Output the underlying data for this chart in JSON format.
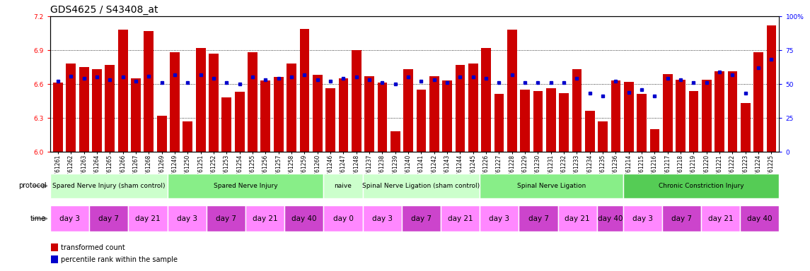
{
  "title": "GDS4625 / S43408_at",
  "ylim": [
    6.0,
    7.2
  ],
  "yticks": [
    6.0,
    6.3,
    6.6,
    6.9,
    7.2
  ],
  "y2lim": [
    0,
    100
  ],
  "y2ticks": [
    0,
    25,
    50,
    75,
    100
  ],
  "samples": [
    "GSM761261",
    "GSM761262",
    "GSM761263",
    "GSM761264",
    "GSM761265",
    "GSM761266",
    "GSM761267",
    "GSM761268",
    "GSM761269",
    "GSM761249",
    "GSM761250",
    "GSM761251",
    "GSM761252",
    "GSM761253",
    "GSM761254",
    "GSM761255",
    "GSM761256",
    "GSM761257",
    "GSM761258",
    "GSM761259",
    "GSM761260",
    "GSM761246",
    "GSM761247",
    "GSM761248",
    "GSM761237",
    "GSM761238",
    "GSM761239",
    "GSM761240",
    "GSM761241",
    "GSM761242",
    "GSM761243",
    "GSM761244",
    "GSM761245",
    "GSM761226",
    "GSM761227",
    "GSM761228",
    "GSM761229",
    "GSM761230",
    "GSM761231",
    "GSM761232",
    "GSM761233",
    "GSM761234",
    "GSM761235",
    "GSM761236",
    "GSM761214",
    "GSM761215",
    "GSM761216",
    "GSM761217",
    "GSM761218",
    "GSM761219",
    "GSM761220",
    "GSM761221",
    "GSM761222",
    "GSM761223",
    "GSM761224",
    "GSM761225"
  ],
  "bar_values": [
    6.61,
    6.78,
    6.75,
    6.73,
    6.77,
    7.08,
    6.65,
    7.07,
    6.32,
    6.88,
    6.27,
    6.92,
    6.87,
    6.48,
    6.53,
    6.88,
    6.63,
    6.66,
    6.78,
    7.09,
    6.68,
    6.56,
    6.65,
    6.9,
    6.67,
    6.61,
    6.18,
    6.73,
    6.55,
    6.67,
    6.63,
    6.77,
    6.78,
    6.92,
    6.51,
    7.08,
    6.55,
    6.54,
    6.56,
    6.52,
    6.73,
    6.36,
    6.27,
    6.63,
    6.62,
    6.51,
    6.2,
    6.69,
    6.64,
    6.54,
    6.64,
    6.71,
    6.71,
    6.43,
    6.88,
    7.12
  ],
  "percentile_values": [
    52,
    56,
    54,
    55,
    53,
    55,
    52,
    56,
    51,
    57,
    51,
    57,
    54,
    51,
    50,
    55,
    53,
    54,
    55,
    57,
    53,
    52,
    54,
    55,
    53,
    51,
    50,
    55,
    52,
    53,
    51,
    55,
    55,
    54,
    51,
    57,
    51,
    51,
    51,
    51,
    54,
    43,
    41,
    52,
    44,
    46,
    41,
    54,
    53,
    51,
    51,
    59,
    57,
    43,
    62,
    68
  ],
  "protocol_groups": [
    {
      "label": "Spared Nerve Injury (sham control)",
      "start": 0,
      "end": 9,
      "color": "#ccffcc"
    },
    {
      "label": "Spared Nerve Injury",
      "start": 9,
      "end": 21,
      "color": "#88ee88"
    },
    {
      "label": "naive",
      "start": 21,
      "end": 24,
      "color": "#ccffcc"
    },
    {
      "label": "Spinal Nerve Ligation (sham control)",
      "start": 24,
      "end": 33,
      "color": "#ccffcc"
    },
    {
      "label": "Spinal Nerve Ligation",
      "start": 33,
      "end": 44,
      "color": "#88ee88"
    },
    {
      "label": "Chronic Constriction Injury",
      "start": 44,
      "end": 56,
      "color": "#55cc55"
    }
  ],
  "time_groups": [
    {
      "label": "day 3",
      "start": 0,
      "end": 3,
      "color": "#ff88ff"
    },
    {
      "label": "day 7",
      "start": 3,
      "end": 6,
      "color": "#cc44cc"
    },
    {
      "label": "day 21",
      "start": 6,
      "end": 9,
      "color": "#ff88ff"
    },
    {
      "label": "day 3",
      "start": 9,
      "end": 12,
      "color": "#ff88ff"
    },
    {
      "label": "day 7",
      "start": 12,
      "end": 15,
      "color": "#cc44cc"
    },
    {
      "label": "day 21",
      "start": 15,
      "end": 18,
      "color": "#ff88ff"
    },
    {
      "label": "day 40",
      "start": 18,
      "end": 21,
      "color": "#cc44cc"
    },
    {
      "label": "day 0",
      "start": 21,
      "end": 24,
      "color": "#ff88ff"
    },
    {
      "label": "day 3",
      "start": 24,
      "end": 27,
      "color": "#ff88ff"
    },
    {
      "label": "day 7",
      "start": 27,
      "end": 30,
      "color": "#cc44cc"
    },
    {
      "label": "day 21",
      "start": 30,
      "end": 33,
      "color": "#ff88ff"
    },
    {
      "label": "day 3",
      "start": 33,
      "end": 36,
      "color": "#ff88ff"
    },
    {
      "label": "day 7",
      "start": 36,
      "end": 39,
      "color": "#cc44cc"
    },
    {
      "label": "day 21",
      "start": 39,
      "end": 42,
      "color": "#ff88ff"
    },
    {
      "label": "day 40",
      "start": 42,
      "end": 44,
      "color": "#cc44cc"
    },
    {
      "label": "day 3",
      "start": 44,
      "end": 47,
      "color": "#ff88ff"
    },
    {
      "label": "day 7",
      "start": 47,
      "end": 50,
      "color": "#cc44cc"
    },
    {
      "label": "day 21",
      "start": 50,
      "end": 53,
      "color": "#ff88ff"
    },
    {
      "label": "day 40",
      "start": 53,
      "end": 56,
      "color": "#cc44cc"
    }
  ],
  "bar_color": "#cc0000",
  "dot_color": "#0000cc",
  "bar_bottom": 6.0,
  "title_fontsize": 10,
  "tick_fontsize": 5.5,
  "xtick_fontsize": 5.5,
  "label_fontsize": 7,
  "legend_fontsize": 7,
  "protocol_fontsize": 6.5,
  "time_fontsize": 7.5
}
